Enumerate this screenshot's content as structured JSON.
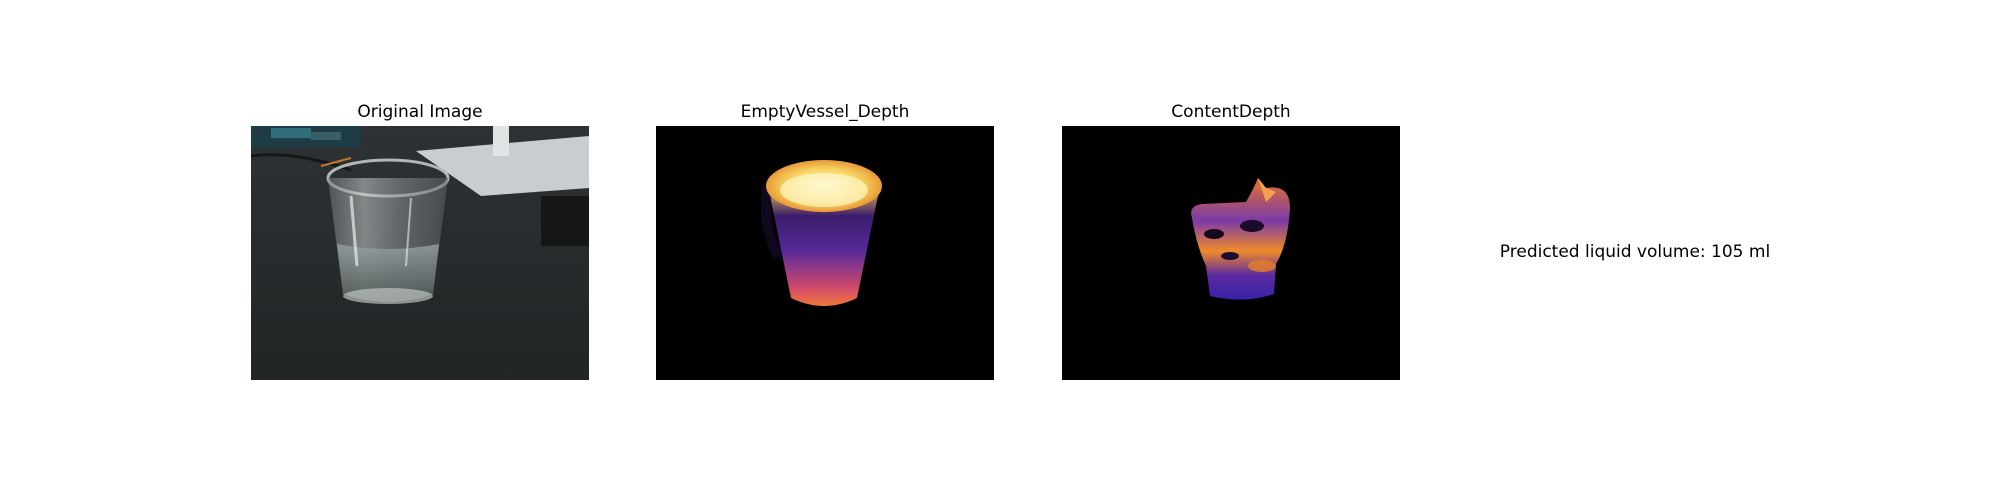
{
  "panels": [
    {
      "title": "Original Image",
      "image": "photo of a glass of water on a dark desk"
    },
    {
      "title": "EmptyVessel_Depth",
      "image": "depth map of empty cup shape",
      "colormap": "inferno"
    },
    {
      "title": "ContentDepth",
      "image": "depth map of liquid content",
      "colormap": "plasma"
    }
  ],
  "result": {
    "text": "Predicted liquid volume: 105 ml"
  },
  "colors": {
    "background": "#ffffff",
    "panel_bg": "#000000",
    "desk": "#26292b"
  }
}
